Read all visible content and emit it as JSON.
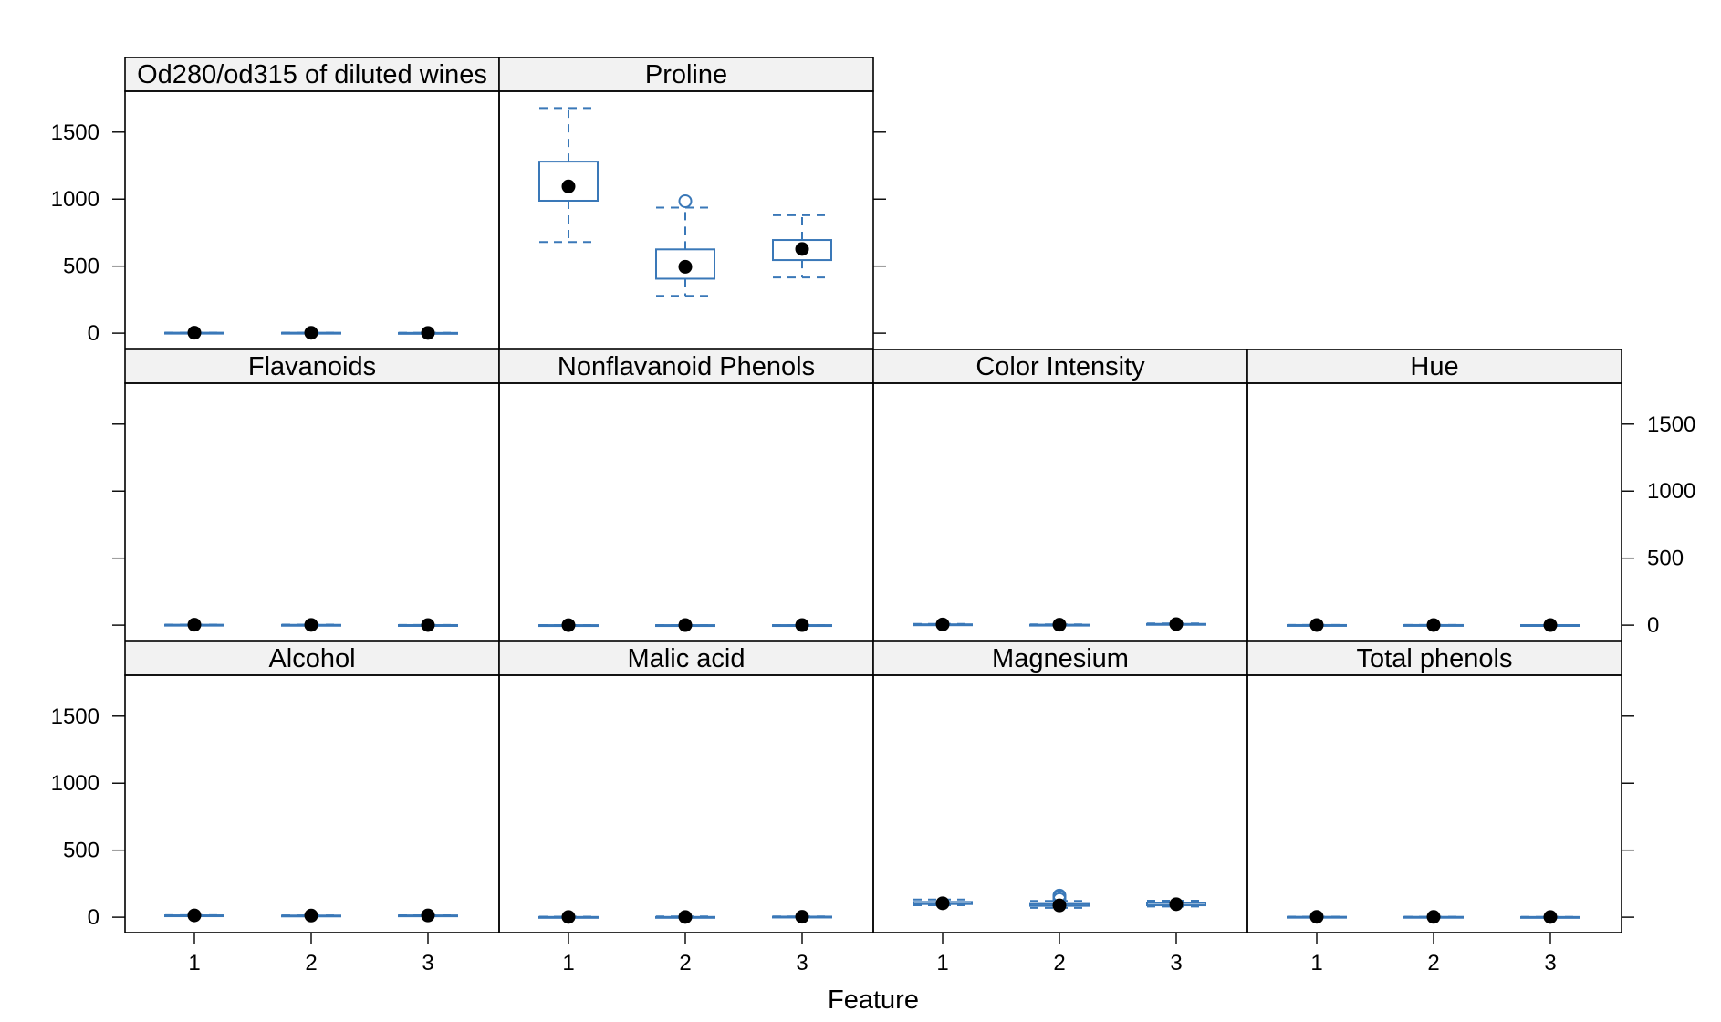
{
  "chart_data": {
    "type": "box",
    "xlabel": "Feature",
    "ylabel": "",
    "ylim": [
      -115,
      1805
    ],
    "y_ticks": [
      0,
      500,
      1000,
      1500
    ],
    "x_ticks": [
      "1",
      "2",
      "3"
    ],
    "colors": {
      "box": "#3a78b8",
      "median_dot": "#000000",
      "strip_bg": "#f2f2f2",
      "frame": "#000000"
    },
    "panels": [
      {
        "title": "Alcohol",
        "boxes": [
          {
            "x": "1",
            "whisker_low": 12.8,
            "q1": 13.2,
            "median": 13.7,
            "q3": 14.1,
            "whisker_high": 14.8,
            "outliers": []
          },
          {
            "x": "2",
            "whisker_low": 11.0,
            "q1": 11.9,
            "median": 12.3,
            "q3": 12.5,
            "whisker_high": 13.9,
            "outliers": []
          },
          {
            "x": "3",
            "whisker_low": 12.2,
            "q1": 12.8,
            "median": 13.2,
            "q3": 13.5,
            "whisker_high": 14.3,
            "outliers": []
          }
        ]
      },
      {
        "title": "Malic acid",
        "boxes": [
          {
            "x": "1",
            "whisker_low": 1.4,
            "q1": 1.7,
            "median": 1.8,
            "q3": 2.0,
            "whisker_high": 4.0,
            "outliers": []
          },
          {
            "x": "2",
            "whisker_low": 0.7,
            "q1": 1.3,
            "median": 1.6,
            "q3": 2.1,
            "whisker_high": 5.8,
            "outliers": []
          },
          {
            "x": "3",
            "whisker_low": 1.2,
            "q1": 2.6,
            "median": 3.3,
            "q3": 4.4,
            "whisker_high": 5.7,
            "outliers": []
          }
        ]
      },
      {
        "title": "Magnesium",
        "boxes": [
          {
            "x": "1",
            "whisker_low": 89,
            "q1": 98,
            "median": 104,
            "q3": 114,
            "whisker_high": 132,
            "outliers": []
          },
          {
            "x": "2",
            "whisker_low": 70,
            "q1": 85,
            "median": 88,
            "q3": 99,
            "whisker_high": 122,
            "outliers": [
              134,
              151,
              162
            ]
          },
          {
            "x": "3",
            "whisker_low": 80,
            "q1": 89,
            "median": 97,
            "q3": 106,
            "whisker_high": 123,
            "outliers": []
          }
        ]
      },
      {
        "title": "Total phenols",
        "boxes": [
          {
            "x": "1",
            "whisker_low": 2.2,
            "q1": 2.6,
            "median": 2.8,
            "q3": 3.0,
            "whisker_high": 3.9,
            "outliers": []
          },
          {
            "x": "2",
            "whisker_low": 1.1,
            "q1": 1.9,
            "median": 2.2,
            "q3": 2.6,
            "whisker_high": 3.5,
            "outliers": []
          },
          {
            "x": "3",
            "whisker_low": 1.0,
            "q1": 1.4,
            "median": 1.6,
            "q3": 1.8,
            "whisker_high": 2.8,
            "outliers": []
          }
        ]
      },
      {
        "title": "Flavanoids",
        "boxes": [
          {
            "x": "1",
            "whisker_low": 2.2,
            "q1": 2.7,
            "median": 3.0,
            "q3": 3.2,
            "whisker_high": 3.9,
            "outliers": []
          },
          {
            "x": "2",
            "whisker_low": 0.6,
            "q1": 1.6,
            "median": 2.0,
            "q3": 2.4,
            "whisker_high": 3.8,
            "outliers": []
          },
          {
            "x": "3",
            "whisker_low": 0.3,
            "q1": 0.6,
            "median": 0.7,
            "q3": 0.9,
            "whisker_high": 1.6,
            "outliers": []
          }
        ]
      },
      {
        "title": "Nonflavanoid Phenols",
        "boxes": [
          {
            "x": "1",
            "whisker_low": 0.17,
            "q1": 0.26,
            "median": 0.29,
            "q3": 0.32,
            "whisker_high": 0.5,
            "outliers": []
          },
          {
            "x": "2",
            "whisker_low": 0.13,
            "q1": 0.27,
            "median": 0.37,
            "q3": 0.43,
            "whisker_high": 0.66,
            "outliers": []
          },
          {
            "x": "3",
            "whisker_low": 0.17,
            "q1": 0.4,
            "median": 0.47,
            "q3": 0.53,
            "whisker_high": 0.63,
            "outliers": []
          }
        ]
      },
      {
        "title": "Color Intensity",
        "boxes": [
          {
            "x": "1",
            "whisker_low": 3.5,
            "q1": 4.6,
            "median": 5.4,
            "q3": 6.2,
            "whisker_high": 8.9,
            "outliers": []
          },
          {
            "x": "2",
            "whisker_low": 1.3,
            "q1": 2.2,
            "median": 2.9,
            "q3": 3.4,
            "whisker_high": 6.0,
            "outliers": []
          },
          {
            "x": "3",
            "whisker_low": 3.9,
            "q1": 5.7,
            "median": 7.6,
            "q3": 9.2,
            "whisker_high": 13.0,
            "outliers": []
          }
        ]
      },
      {
        "title": "Hue",
        "boxes": [
          {
            "x": "1",
            "whisker_low": 0.82,
            "q1": 1.0,
            "median": 1.07,
            "q3": 1.13,
            "whisker_high": 1.28,
            "outliers": []
          },
          {
            "x": "2",
            "whisker_low": 0.69,
            "q1": 0.93,
            "median": 1.04,
            "q3": 1.2,
            "whisker_high": 1.71,
            "outliers": []
          },
          {
            "x": "3",
            "whisker_low": 0.48,
            "q1": 0.59,
            "median": 0.67,
            "q3": 0.76,
            "whisker_high": 0.96,
            "outliers": []
          }
        ]
      },
      {
        "title": "Od280/od315 of diluted wines",
        "boxes": [
          {
            "x": "1",
            "whisker_low": 2.5,
            "q1": 2.8,
            "median": 3.2,
            "q3": 3.4,
            "whisker_high": 4.0,
            "outliers": []
          },
          {
            "x": "2",
            "whisker_low": 1.6,
            "q1": 2.4,
            "median": 2.8,
            "q3": 3.2,
            "whisker_high": 3.7,
            "outliers": []
          },
          {
            "x": "3",
            "whisker_low": 1.3,
            "q1": 1.5,
            "median": 1.7,
            "q3": 1.9,
            "whisker_high": 2.5,
            "outliers": []
          }
        ]
      },
      {
        "title": "Proline",
        "boxes": [
          {
            "x": "1",
            "whisker_low": 680,
            "q1": 988,
            "median": 1095,
            "q3": 1280,
            "whisker_high": 1680,
            "outliers": []
          },
          {
            "x": "2",
            "whisker_low": 278,
            "q1": 406,
            "median": 495,
            "q3": 625,
            "whisker_high": 937,
            "outliers": [
              985
            ]
          },
          {
            "x": "3",
            "whisker_low": 415,
            "q1": 545,
            "median": 628,
            "q3": 695,
            "whisker_high": 880,
            "outliers": []
          }
        ]
      }
    ]
  }
}
